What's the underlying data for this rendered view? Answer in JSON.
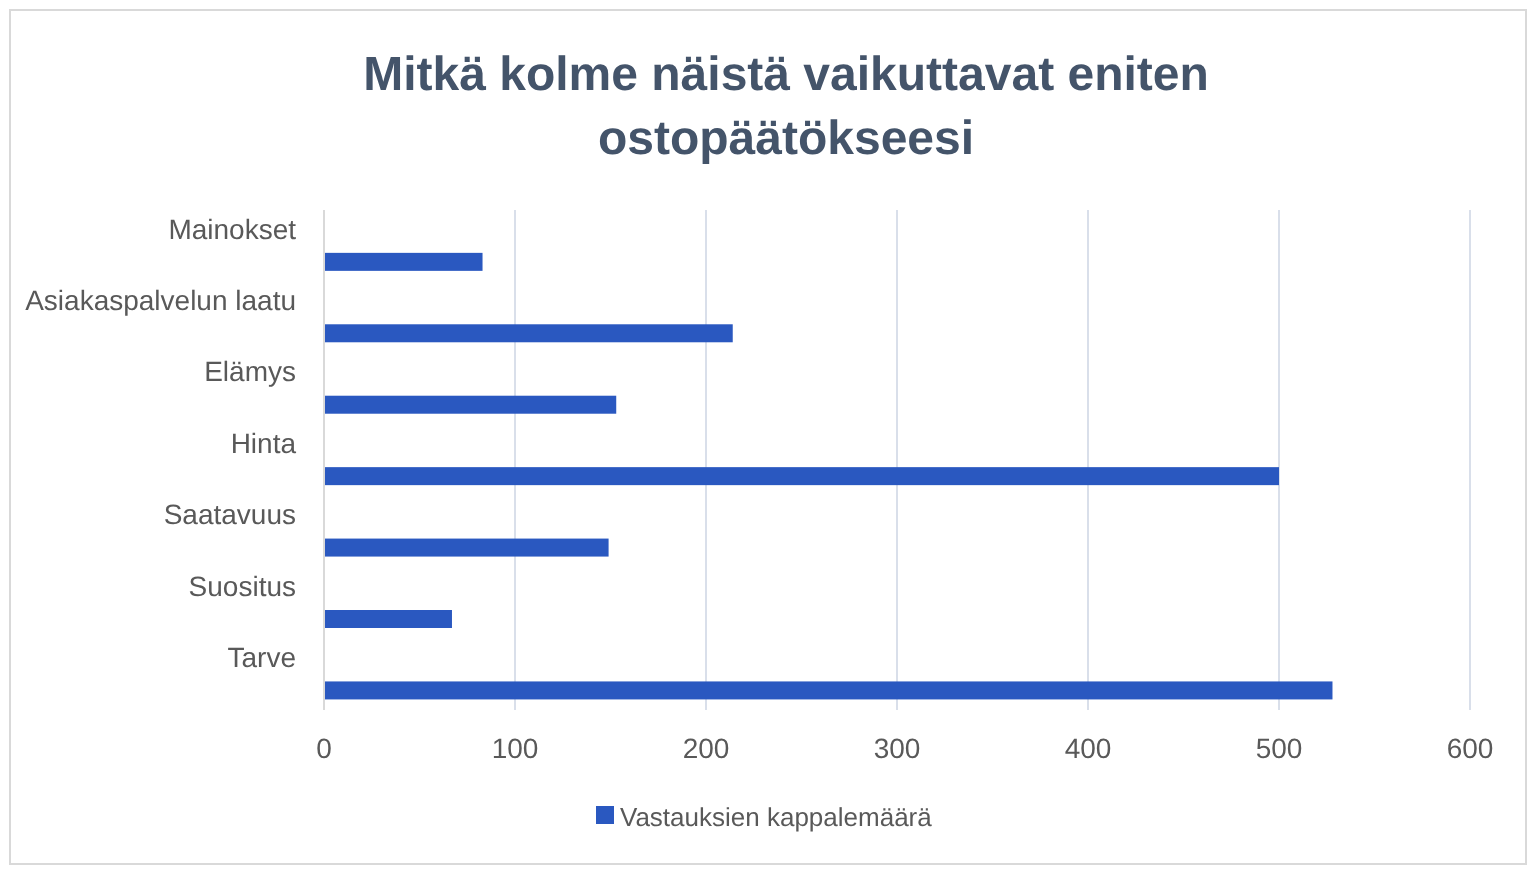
{
  "chart_data": {
    "type": "bar",
    "orientation": "horizontal",
    "title": "Mitkä kolme näistä vaikuttavat eniten ostopäätökseesi",
    "categories": [
      "Mainokset",
      "Asiakaspalvelun laatu",
      "Elämys",
      "Hinta",
      "Saatavuus",
      "Suositus",
      "Tarve"
    ],
    "series": [
      {
        "name": "Vastauksien kappalemäärä",
        "color": "#2a58c0",
        "values": [
          83,
          214,
          153,
          500,
          149,
          67,
          528
        ]
      }
    ],
    "xlim": [
      0,
      600
    ],
    "xticks": [
      0,
      100,
      200,
      300,
      400,
      500,
      600
    ],
    "grid": "x",
    "legend": "bottom"
  }
}
